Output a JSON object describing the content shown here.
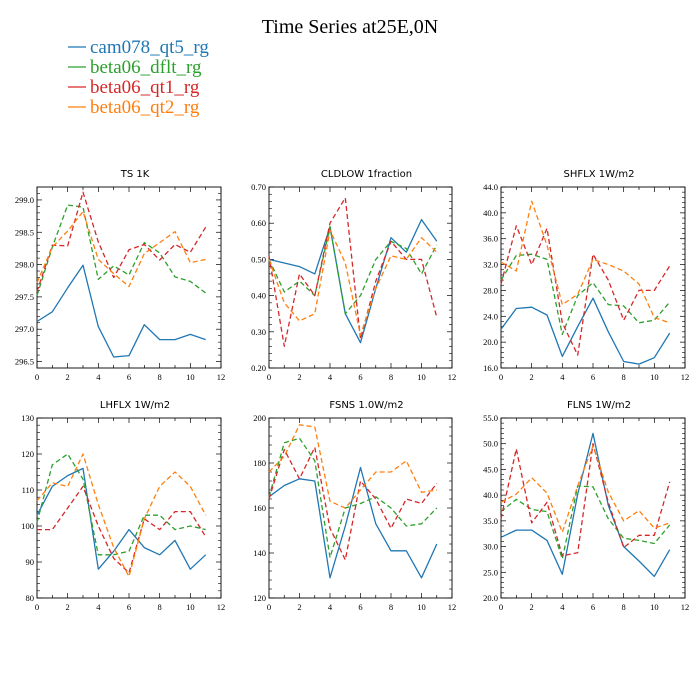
{
  "figure_title": "Time Series at25E,0N",
  "chart_data": [
    {
      "type": "line",
      "title": "TS   1K",
      "x": [
        0,
        1,
        2,
        3,
        4,
        5,
        6,
        7,
        8,
        9,
        10,
        11
      ],
      "xlim": [
        0,
        12
      ],
      "xticks": [
        "0",
        "2",
        "4",
        "6",
        "8",
        "10",
        "12"
      ],
      "ylim": [
        296.4,
        299.2
      ],
      "yticks": [
        "296.5",
        "297.0",
        "297.5",
        "298.0",
        "298.5",
        "299.0"
      ],
      "series": [
        {
          "name": "cam078_qt5_rg",
          "color": "#1f77b4",
          "values": [
            297.12,
            297.27,
            297.64,
            297.99,
            297.04,
            296.57,
            296.59,
            297.07,
            296.84,
            296.84,
            296.92,
            296.84
          ]
        },
        {
          "name": "beta06_dflt_rg",
          "color": "#2ca02c",
          "values": [
            297.52,
            298.27,
            298.92,
            298.89,
            297.77,
            297.98,
            297.84,
            298.34,
            298.18,
            297.81,
            297.74,
            297.56
          ]
        },
        {
          "name": "beta06_qt1_rg",
          "color": "#d62728",
          "values": [
            297.58,
            298.3,
            298.29,
            299.12,
            298.35,
            297.8,
            298.23,
            298.31,
            298.07,
            298.31,
            298.19,
            298.58
          ]
        },
        {
          "name": "beta06_qt2_rg",
          "color": "#ff7f0e",
          "values": [
            297.72,
            298.27,
            298.52,
            298.82,
            298.08,
            297.86,
            297.66,
            298.17,
            298.34,
            298.51,
            298.03,
            298.08
          ]
        }
      ]
    },
    {
      "type": "line",
      "title": "CLDLOW   1fraction",
      "x": [
        0,
        1,
        2,
        3,
        4,
        5,
        6,
        7,
        8,
        9,
        10,
        11
      ],
      "xlim": [
        0,
        12
      ],
      "xticks": [
        "0",
        "2",
        "4",
        "6",
        "8",
        "10",
        "12"
      ],
      "ylim": [
        0.2,
        0.7
      ],
      "yticks": [
        "0.20",
        "0.30",
        "0.40",
        "0.50",
        "0.60",
        "0.70"
      ],
      "series": [
        {
          "name": "cam078_qt5_rg",
          "color": "#1f77b4",
          "values": [
            0.5,
            0.49,
            0.48,
            0.46,
            0.59,
            0.35,
            0.27,
            0.42,
            0.56,
            0.52,
            0.61,
            0.55
          ]
        },
        {
          "name": "beta06_dflt_rg",
          "color": "#2ca02c",
          "values": [
            0.5,
            0.41,
            0.44,
            0.4,
            0.59,
            0.35,
            0.4,
            0.5,
            0.55,
            0.53,
            0.46,
            0.54
          ]
        },
        {
          "name": "beta06_qt1_rg",
          "color": "#d62728",
          "values": [
            0.51,
            0.26,
            0.46,
            0.4,
            0.6,
            0.67,
            0.28,
            0.44,
            0.55,
            0.5,
            0.5,
            0.34
          ]
        },
        {
          "name": "beta06_qt2_rg",
          "color": "#ff7f0e",
          "values": [
            0.5,
            0.38,
            0.33,
            0.35,
            0.58,
            0.49,
            0.29,
            0.42,
            0.51,
            0.5,
            0.56,
            0.52
          ]
        }
      ]
    },
    {
      "type": "line",
      "title": "SHFLX   1W/m2",
      "x": [
        0,
        1,
        2,
        3,
        4,
        5,
        6,
        7,
        8,
        9,
        10,
        11
      ],
      "xlim": [
        0,
        12
      ],
      "xticks": [
        "0",
        "2",
        "4",
        "6",
        "8",
        "10",
        "12"
      ],
      "ylim": [
        16.0,
        44.0
      ],
      "yticks": [
        "16.0",
        "20.0",
        "24.0",
        "28.0",
        "32.0",
        "36.0",
        "40.0",
        "44.0"
      ],
      "series": [
        {
          "name": "cam078_qt5_rg",
          "color": "#1f77b4",
          "values": [
            22.0,
            25.2,
            25.4,
            24.2,
            17.8,
            22.4,
            26.8,
            21.6,
            17.0,
            16.6,
            17.6,
            21.4
          ]
        },
        {
          "name": "beta06_dflt_rg",
          "color": "#2ca02c",
          "values": [
            29.6,
            33.4,
            33.6,
            32.8,
            21.2,
            27.2,
            29.2,
            25.8,
            25.6,
            23.0,
            23.4,
            26.2
          ]
        },
        {
          "name": "beta06_qt1_rg",
          "color": "#d62728",
          "values": [
            29.0,
            38.0,
            32.0,
            37.6,
            23.0,
            18.0,
            33.6,
            29.6,
            23.4,
            28.0,
            28.0,
            31.8
          ]
        },
        {
          "name": "beta06_qt2_rg",
          "color": "#ff7f0e",
          "values": [
            32.4,
            31.0,
            41.8,
            35.0,
            25.8,
            27.4,
            32.8,
            32.0,
            31.0,
            29.0,
            23.8,
            23.0
          ]
        }
      ]
    },
    {
      "type": "line",
      "title": "LHFLX   1W/m2",
      "x": [
        0,
        1,
        2,
        3,
        4,
        5,
        6,
        7,
        8,
        9,
        10,
        11
      ],
      "xlim": [
        0,
        12
      ],
      "xticks": [
        "0",
        "2",
        "4",
        "6",
        "8",
        "10",
        "12"
      ],
      "ylim": [
        80,
        130
      ],
      "yticks": [
        "80",
        "90",
        "100",
        "110",
        "120",
        "130"
      ],
      "series": [
        {
          "name": "cam078_qt5_rg",
          "color": "#1f77b4",
          "values": [
            103,
            111,
            114,
            116,
            88,
            93,
            99,
            94,
            92,
            96,
            88,
            92
          ]
        },
        {
          "name": "beta06_dflt_rg",
          "color": "#2ca02c",
          "values": [
            101,
            117,
            120,
            113,
            92,
            92,
            93,
            103,
            103,
            99,
            100,
            99
          ]
        },
        {
          "name": "beta06_qt1_rg",
          "color": "#d62728",
          "values": [
            99,
            99,
            105,
            111,
            100,
            91,
            87,
            102,
            99,
            104,
            104,
            97
          ]
        },
        {
          "name": "beta06_qt2_rg",
          "color": "#ff7f0e",
          "values": [
            107,
            112,
            111,
            120,
            106,
            94,
            86,
            102,
            111,
            115,
            111,
            103
          ]
        }
      ]
    },
    {
      "type": "line",
      "title": "FSNS   1.0W/m2",
      "x": [
        0,
        1,
        2,
        3,
        4,
        5,
        6,
        7,
        8,
        9,
        10,
        11
      ],
      "xlim": [
        0,
        12
      ],
      "xticks": [
        "0",
        "2",
        "4",
        "6",
        "8",
        "10",
        "12"
      ],
      "ylim": [
        120,
        200
      ],
      "yticks": [
        "120",
        "140",
        "160",
        "180",
        "200"
      ],
      "series": [
        {
          "name": "cam078_qt5_rg",
          "color": "#1f77b4",
          "values": [
            165,
            170,
            173,
            172,
            129,
            152,
            178,
            153,
            141,
            141,
            129,
            144
          ]
        },
        {
          "name": "beta06_dflt_rg",
          "color": "#2ca02c",
          "values": [
            165,
            189,
            191,
            181,
            138,
            160,
            162,
            165,
            160,
            152,
            153,
            160
          ]
        },
        {
          "name": "beta06_qt1_rg",
          "color": "#d62728",
          "values": [
            164,
            186,
            173,
            187,
            151,
            137,
            172,
            164,
            151,
            164,
            162,
            171
          ]
        },
        {
          "name": "beta06_qt2_rg",
          "color": "#ff7f0e",
          "values": [
            176,
            183,
            197,
            196,
            163,
            160,
            168,
            176,
            176,
            181,
            167,
            168
          ]
        }
      ]
    },
    {
      "type": "line",
      "title": "FLNS   1W/m2",
      "x": [
        0,
        1,
        2,
        3,
        4,
        5,
        6,
        7,
        8,
        9,
        10,
        11
      ],
      "xlim": [
        0,
        12
      ],
      "xticks": [
        "0",
        "2",
        "4",
        "6",
        "8",
        "10",
        "12"
      ],
      "ylim": [
        20.0,
        55.0
      ],
      "yticks": [
        "20.0",
        "25.0",
        "30.0",
        "35.0",
        "40.0",
        "45.0",
        "50.0",
        "55.0"
      ],
      "series": [
        {
          "name": "cam078_qt5_rg",
          "color": "#1f77b4",
          "values": [
            31.8,
            33.2,
            33.2,
            31.2,
            24.6,
            40.2,
            52.0,
            38.0,
            30.0,
            27.2,
            24.2,
            29.4
          ]
        },
        {
          "name": "beta06_dflt_rg",
          "color": "#2ca02c",
          "values": [
            36.8,
            39.2,
            37.2,
            36.8,
            27.6,
            41.8,
            41.6,
            35.4,
            31.6,
            31.2,
            30.6,
            34.2
          ]
        },
        {
          "name": "beta06_qt1_rg",
          "color": "#d62728",
          "values": [
            35.4,
            49.0,
            34.6,
            38.6,
            28.2,
            28.8,
            50.0,
            38.6,
            29.8,
            32.2,
            32.2,
            42.6
          ]
        },
        {
          "name": "beta06_qt2_rg",
          "color": "#ff7f0e",
          "values": [
            38.6,
            40.2,
            43.4,
            40.4,
            32.8,
            41.8,
            49.6,
            40.6,
            35.0,
            37.0,
            33.6,
            34.6
          ]
        }
      ]
    }
  ]
}
